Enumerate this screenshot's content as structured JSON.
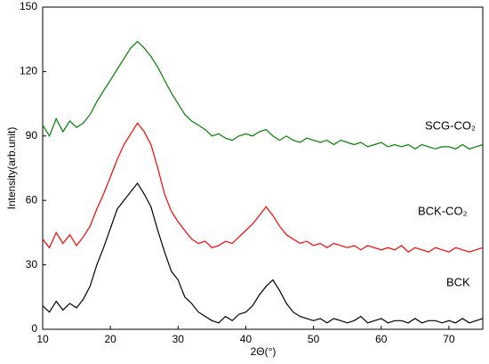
{
  "chart_data": {
    "type": "line",
    "x_label": "2Θ(°)",
    "y_label": "Intensity(arb.unit)",
    "x": [
      10,
      11,
      12,
      13,
      14,
      15,
      16,
      17,
      18,
      19,
      20,
      21,
      22,
      23,
      24,
      25,
      26,
      27,
      28,
      29,
      30,
      31,
      32,
      33,
      34,
      35,
      36,
      37,
      38,
      39,
      40,
      41,
      42,
      43,
      44,
      45,
      46,
      47,
      48,
      49,
      50,
      51,
      52,
      53,
      54,
      55,
      56,
      57,
      58,
      59,
      60,
      61,
      62,
      63,
      64,
      65,
      66,
      67,
      68,
      69,
      70,
      71,
      72,
      73,
      74,
      75
    ],
    "series": [
      {
        "name": "SCG-CO₂",
        "color": "#008000",
        "values": [
          95,
          90,
          98,
          92,
          97,
          94,
          96,
          100,
          106,
          111,
          116,
          121,
          126,
          131,
          134,
          131,
          127,
          122,
          116,
          110,
          105,
          100,
          97,
          95,
          93,
          90,
          91,
          89,
          88,
          90,
          91,
          90,
          92,
          93,
          90,
          88,
          90,
          88,
          87,
          89,
          88,
          87,
          88,
          86,
          88,
          87,
          86,
          87,
          85,
          86,
          87,
          85,
          86,
          85,
          86,
          84,
          86,
          85,
          84,
          85,
          85,
          84,
          86,
          84,
          85,
          86
        ]
      },
      {
        "name": "BCK-CO₂",
        "color": "#ff0000",
        "values": [
          42,
          38,
          45,
          40,
          44,
          39,
          43,
          48,
          56,
          63,
          71,
          79,
          86,
          91,
          96,
          92,
          86,
          75,
          63,
          55,
          50,
          46,
          42,
          40,
          41,
          38,
          39,
          41,
          40,
          43,
          46,
          49,
          53,
          57,
          53,
          48,
          44,
          42,
          40,
          41,
          39,
          40,
          38,
          40,
          39,
          38,
          39,
          37,
          39,
          38,
          37,
          38,
          37,
          39,
          36,
          38,
          37,
          36,
          38,
          37,
          36,
          38,
          37,
          36,
          37,
          38
        ]
      },
      {
        "name": "BCK",
        "color": "#000000",
        "values": [
          11,
          8,
          13,
          9,
          12,
          10,
          14,
          20,
          30,
          38,
          47,
          56,
          60,
          64,
          68,
          63,
          57,
          46,
          36,
          27,
          23,
          15,
          12,
          8,
          6,
          4,
          3,
          6,
          4,
          7,
          8,
          11,
          16,
          20,
          23,
          18,
          12,
          8,
          6,
          5,
          4,
          5,
          3,
          5,
          4,
          3,
          4,
          6,
          3,
          4,
          5,
          3,
          4,
          4,
          3,
          5,
          3,
          4,
          4,
          3,
          4,
          3,
          5,
          3,
          4,
          5
        ]
      }
    ],
    "xlim": [
      10,
      75
    ],
    "xticks": [
      10,
      20,
      30,
      40,
      50,
      60,
      70
    ],
    "ylim": [
      0,
      150
    ],
    "yticks": [
      0,
      30,
      60,
      90,
      120,
      150
    ]
  }
}
